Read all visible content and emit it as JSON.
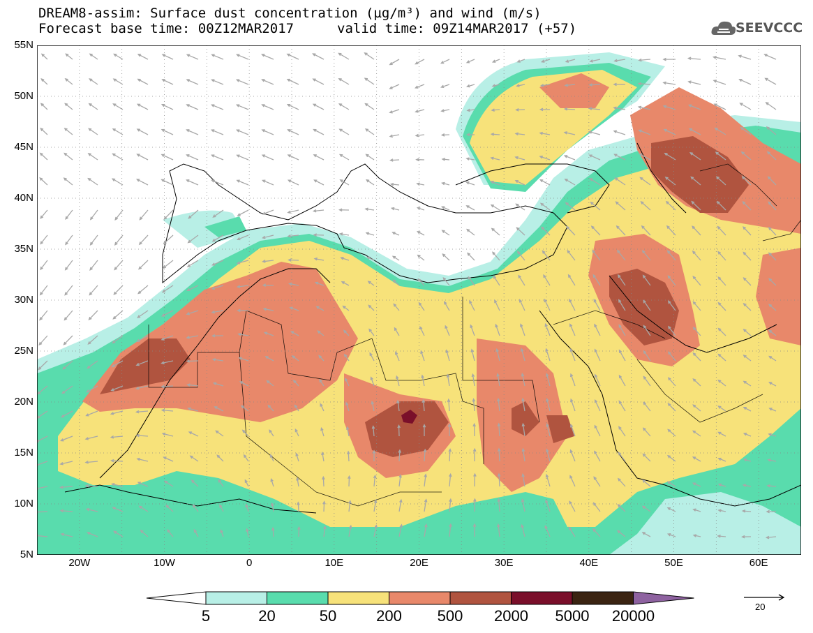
{
  "header": {
    "title_line1": "DREAM8-assim: Surface dust concentration (µg/m³) and wind (m/s)",
    "base_time": "Forecast base time: 00Z12MAR2017",
    "valid_time": "valid time: 09Z14MAR2017 (+57)"
  },
  "logo": {
    "text": "SEEVCCC",
    "icon": "cloud-logo-icon"
  },
  "map": {
    "lat_labels": [
      "55N",
      "50N",
      "45N",
      "40N",
      "35N",
      "30N",
      "25N",
      "20N",
      "15N",
      "10N",
      "5N"
    ],
    "lon_labels": [
      "20W",
      "10W",
      "0",
      "10E",
      "20E",
      "30E",
      "40E",
      "50E",
      "60E"
    ],
    "lat_range": [
      5,
      55
    ],
    "lon_range": [
      -25,
      65
    ],
    "land_color": "#ffffff",
    "gridlines": "dotted",
    "arrow_color": "#aaaaaa"
  },
  "legend": {
    "levels": [
      "5",
      "20",
      "50",
      "200",
      "500",
      "2000",
      "5000",
      "20000"
    ],
    "colors": [
      "#b8efe6",
      "#59dcad",
      "#f7e27a",
      "#e8886a",
      "#b0543f",
      "#7a0f2a",
      "#3b2412",
      "#8e62a0"
    ],
    "underflow_color": "#ffffff",
    "ref_vector_label": "20"
  }
}
